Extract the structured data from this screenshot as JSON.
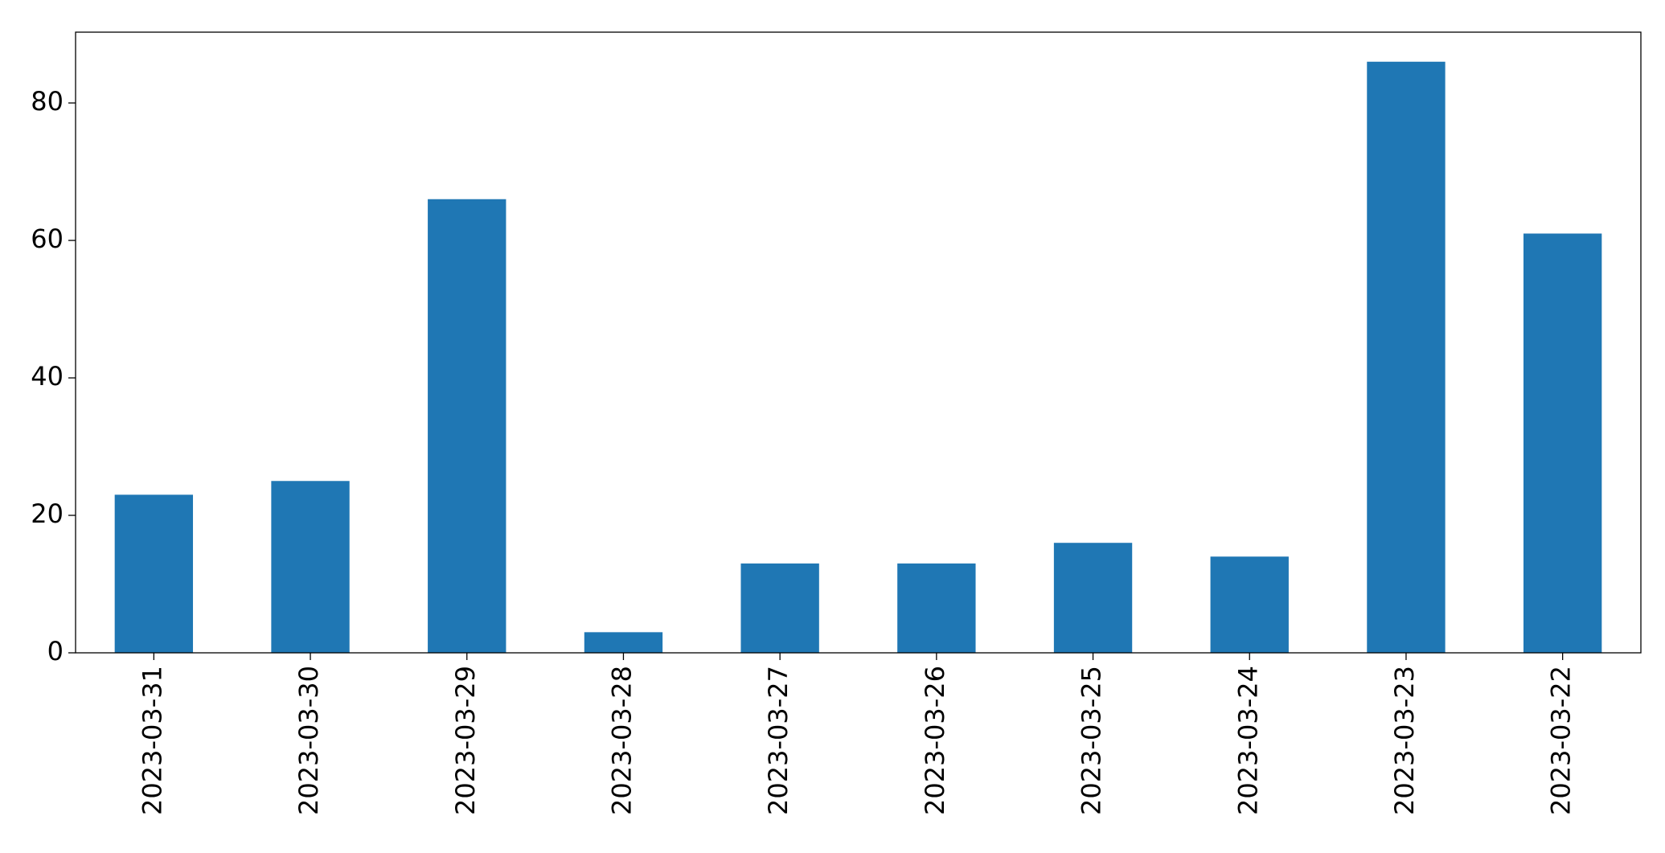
{
  "chart_data": {
    "type": "bar",
    "categories": [
      "2023-03-31",
      "2023-03-30",
      "2023-03-29",
      "2023-03-28",
      "2023-03-27",
      "2023-03-26",
      "2023-03-25",
      "2023-03-24",
      "2023-03-23",
      "2023-03-22"
    ],
    "values": [
      23,
      25,
      66,
      3,
      13,
      13,
      16,
      14,
      86,
      61
    ],
    "color": "#1f77b4",
    "ylim": [
      0,
      90.3
    ],
    "yticks": [
      0,
      20,
      40,
      60,
      80
    ],
    "grid": false
  }
}
